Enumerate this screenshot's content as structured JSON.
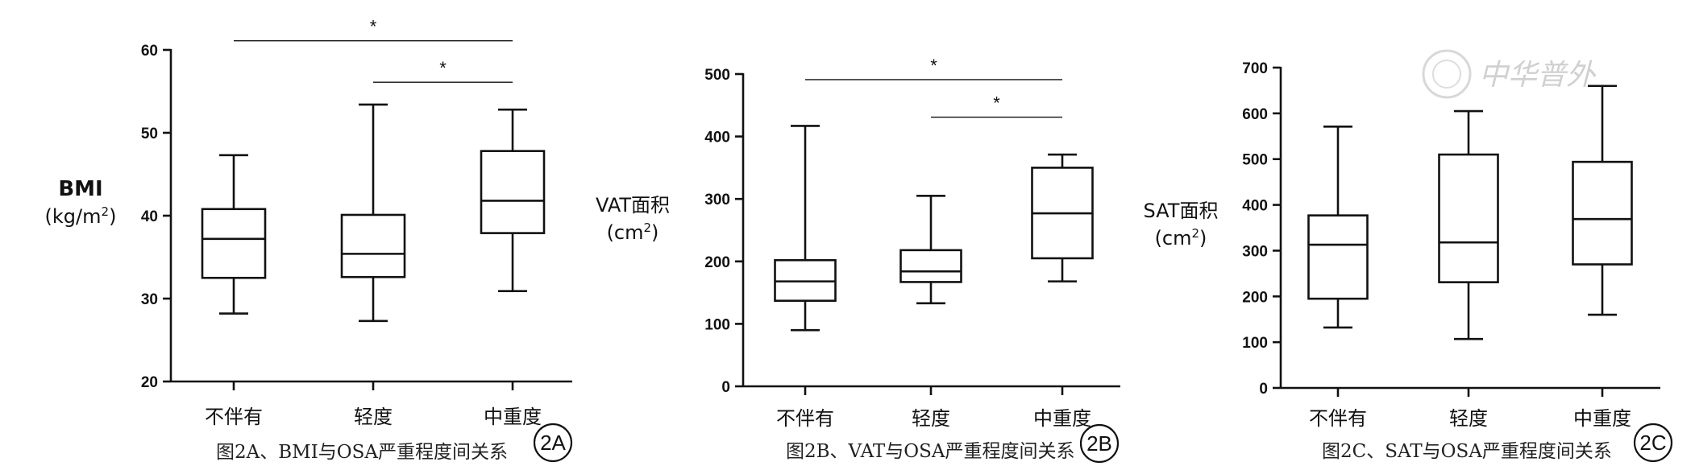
{
  "chart_data": [
    {
      "type": "box",
      "panel": "2A",
      "caption": "图2A、BMI与OSA严重程度间关系",
      "ylabel": {
        "main": "BMI",
        "unit": "(kg/m",
        "sup": "2",
        "close": ")"
      },
      "ylim": [
        20,
        60
      ],
      "yticks": [
        20,
        30,
        40,
        50,
        60
      ],
      "categories": [
        "不伴有",
        "轻度",
        "中重度"
      ],
      "boxes": [
        {
          "category": "不伴有",
          "min": 28.2,
          "q1": 32.5,
          "median": 37.2,
          "q3": 40.8,
          "max": 47.3
        },
        {
          "category": "轻度",
          "min": 27.3,
          "q1": 32.6,
          "median": 35.4,
          "q3": 40.1,
          "max": 53.4
        },
        {
          "category": "中重度",
          "min": 30.9,
          "q1": 37.9,
          "median": 41.8,
          "q3": 47.8,
          "max": 52.8
        }
      ],
      "significance": [
        {
          "from": 0,
          "to": 2,
          "label": "*",
          "y": 61.1
        },
        {
          "from": 1,
          "to": 2,
          "label": "*",
          "y": 56.1
        }
      ]
    },
    {
      "type": "box",
      "panel": "2B",
      "caption": "图2B、VAT与OSA严重程度间关系",
      "ylabel": {
        "main": "VAT面积",
        "unit": "(cm",
        "sup": "2",
        "close": ")"
      },
      "ylim": [
        0,
        500
      ],
      "yticks": [
        0,
        100,
        200,
        300,
        400,
        500
      ],
      "categories": [
        "不伴有",
        "轻度",
        "中重度"
      ],
      "boxes": [
        {
          "category": "不伴有",
          "min": 90,
          "q1": 137,
          "median": 168,
          "q3": 202,
          "max": 417
        },
        {
          "category": "轻度",
          "min": 133,
          "q1": 167,
          "median": 184,
          "q3": 218,
          "max": 305
        },
        {
          "category": "中重度",
          "min": 168,
          "q1": 205,
          "median": 277,
          "q3": 350,
          "max": 371
        }
      ],
      "significance": [
        {
          "from": 0,
          "to": 2,
          "label": "*",
          "y": 491
        },
        {
          "from": 1,
          "to": 2,
          "label": "*",
          "y": 431
        }
      ]
    },
    {
      "type": "box",
      "panel": "2C",
      "caption": "图2C、SAT与OSA严重程度间关系",
      "ylabel": {
        "main": "SAT面积",
        "unit": "(cm",
        "sup": "2",
        "close": ")"
      },
      "ylim": [
        0,
        700
      ],
      "yticks": [
        0,
        100,
        200,
        300,
        400,
        500,
        600,
        700
      ],
      "categories": [
        "不伴有",
        "轻度",
        "中重度"
      ],
      "boxes": [
        {
          "category": "不伴有",
          "min": 132,
          "q1": 195,
          "median": 313,
          "q3": 377,
          "max": 571
        },
        {
          "category": "轻度",
          "min": 107,
          "q1": 231,
          "median": 318,
          "q3": 510,
          "max": 605
        },
        {
          "category": "中重度",
          "min": 160,
          "q1": 270,
          "median": 369,
          "q3": 494,
          "max": 660
        }
      ],
      "significance": []
    }
  ],
  "watermark": {
    "text": "中华普外"
  }
}
